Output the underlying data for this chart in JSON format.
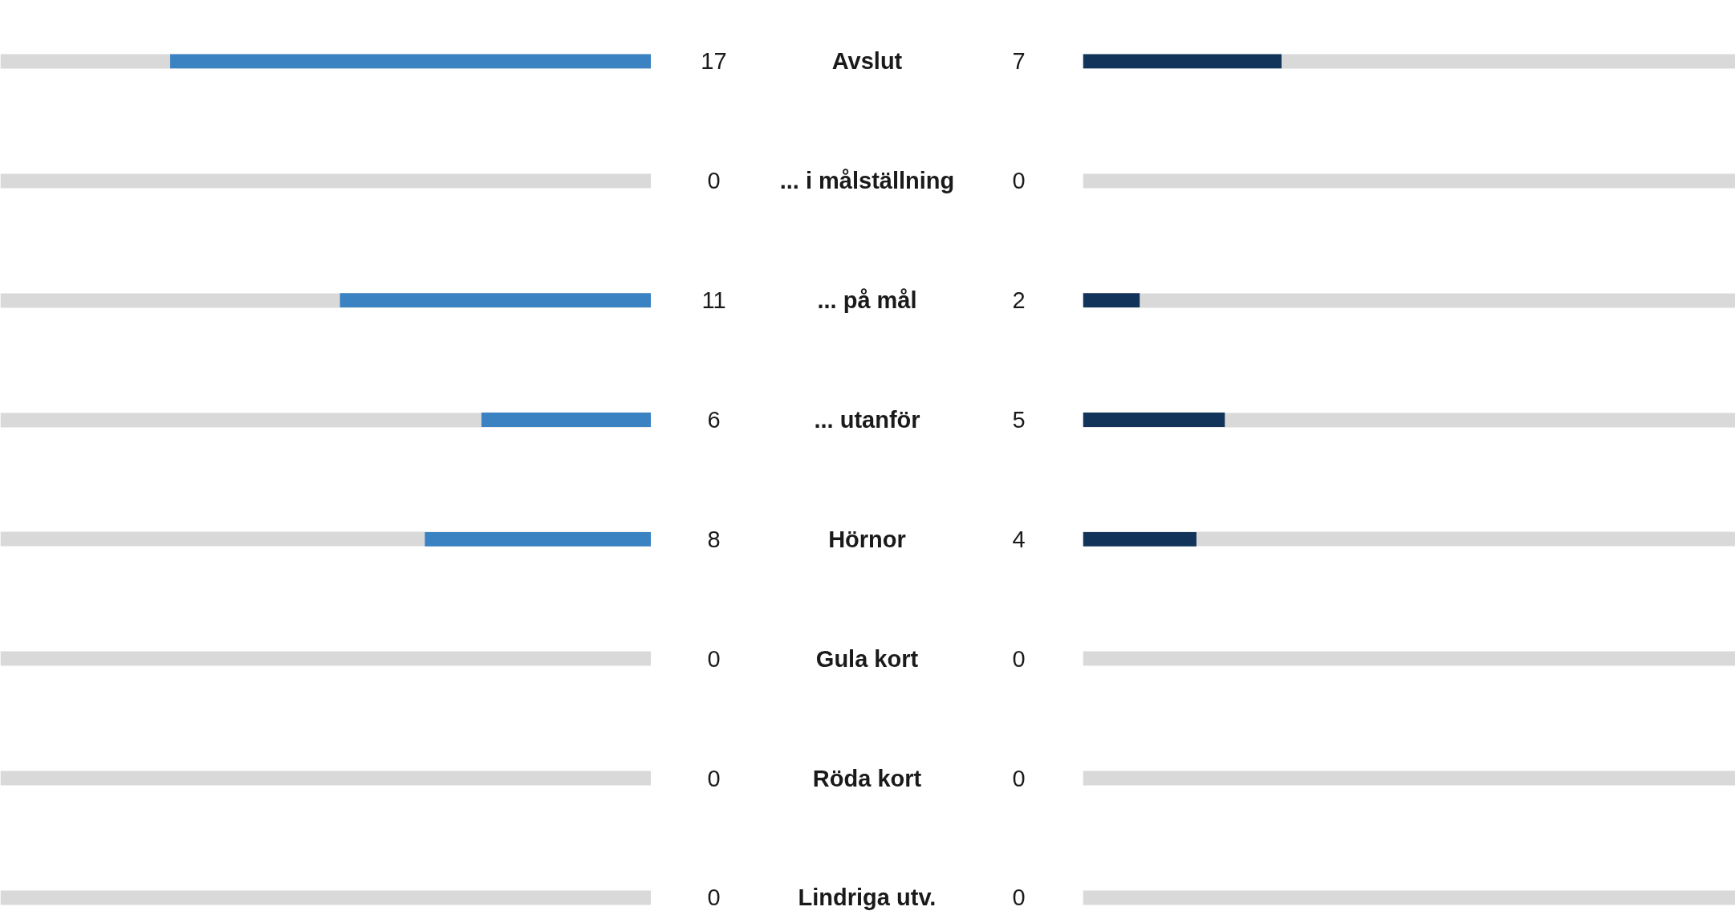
{
  "chart_data": [
    {
      "type": "bar",
      "orientation": "horizontal",
      "categories": [
        "Avslut",
        "... i målställning",
        "... på mål",
        "... utanför",
        "Hörnor",
        "Gula kort",
        "Röda kort",
        "Lindriga utv."
      ],
      "series": [
        {
          "color": "#3a82c2",
          "values": [
            17,
            0,
            11,
            6,
            8,
            0,
            0,
            0
          ]
        }
      ],
      "xlim": [
        23,
        0
      ],
      "grid": "y",
      "data_labels": true,
      "tick_labels": "y"
    },
    {
      "type": "bar",
      "orientation": "horizontal",
      "categories": [
        null,
        null,
        null,
        null,
        null,
        null,
        null,
        null
      ],
      "series": [
        {
          "color": "#12345a",
          "values": [
            7,
            0,
            2,
            5,
            4,
            0,
            0,
            0
          ]
        }
      ],
      "xlim": [
        0,
        23
      ],
      "grid": "y",
      "data_labels": true,
      "tick_labels": false
    }
  ]
}
